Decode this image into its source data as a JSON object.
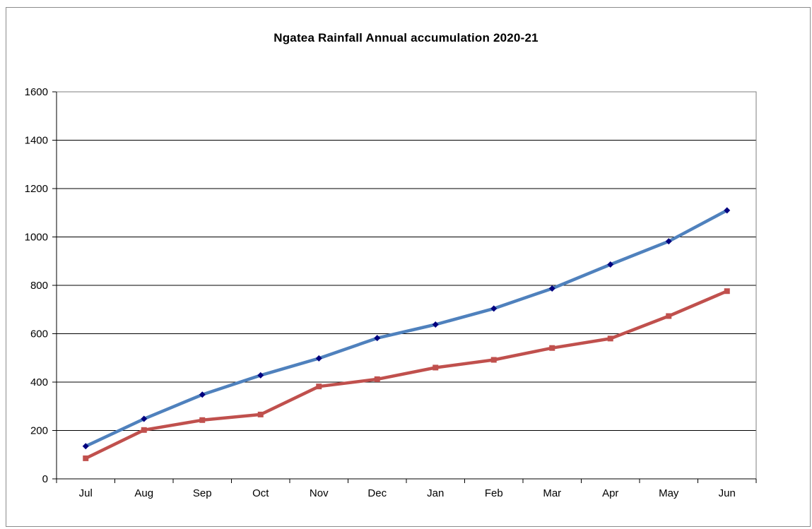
{
  "chart_data": {
    "type": "line",
    "title": "Ngatea Rainfall  Annual  accumulation  2020-21",
    "xlabel": "",
    "ylabel": "",
    "categories": [
      "Jul",
      "Aug",
      "Sep",
      "Oct",
      "Nov",
      "Dec",
      "Jan",
      "Feb",
      "Mar",
      "Apr",
      "May",
      "Jun"
    ],
    "ylim": [
      0,
      1600
    ],
    "yticks": [
      0,
      200,
      400,
      600,
      800,
      1000,
      1200,
      1400,
      1600
    ],
    "grid": true,
    "legend": "none",
    "series": [
      {
        "color": "#4f81bd",
        "marker_color": "#00007f",
        "marker": "diamond",
        "values": [
          135,
          248,
          348,
          428,
          498,
          582,
          638,
          704,
          787,
          886,
          982,
          1110
        ]
      },
      {
        "color": "#c0504d",
        "marker_color": "#c0504d",
        "marker": "square",
        "values": [
          85,
          202,
          243,
          266,
          382,
          412,
          460,
          492,
          541,
          580,
          673,
          776
        ]
      }
    ]
  }
}
